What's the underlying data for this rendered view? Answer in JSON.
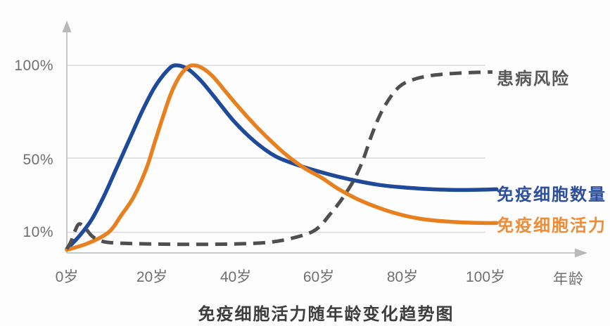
{
  "title": "免疫细胞活力随年龄变化趋势图",
  "axes": {
    "x_unit_label": "年龄",
    "x_ticks": [
      "0岁",
      "20岁",
      "40岁",
      "60岁",
      "80岁",
      "100岁"
    ],
    "y_ticks": [
      "100%",
      "50%",
      "10%"
    ]
  },
  "legend": {
    "risk_label": "患病风险",
    "count_label": "免疫细胞数量",
    "activity_label": "免疫细胞活力"
  },
  "colors": {
    "count_line": "#1e4a99",
    "activity_line": "#e8801f",
    "risk_line": "#4f4f4f",
    "grid_line": "#d9d9d9",
    "axis_line": "#c8c8c8",
    "tick_text": "#6f6f6f"
  },
  "chart_data": {
    "type": "line",
    "title": "免疫细胞活力随年龄变化趋势图",
    "xlabel": "年龄",
    "ylabel": "",
    "x_tick_ages": [
      0,
      20,
      40,
      60,
      80,
      100
    ],
    "y_tick_percent": [
      100,
      50,
      10
    ],
    "xlim": [
      0,
      104
    ],
    "ylim": [
      0,
      110
    ],
    "grid": "horizontal",
    "legend_position": "right-of-line-ends",
    "series": [
      {
        "name": "免疫细胞数量",
        "color": "#1e4a99",
        "style": "solid",
        "x": [
          0,
          3,
          6,
          9,
          12,
          15,
          18,
          21,
          24,
          26,
          29,
          32,
          35,
          40,
          45,
          50,
          55,
          60,
          65,
          70,
          75,
          80,
          85,
          90,
          95,
          100,
          103
        ],
        "y": [
          1,
          8,
          17,
          30,
          45,
          60,
          75,
          88,
          97,
          100,
          98,
          92,
          84,
          70,
          59,
          51,
          46.5,
          43,
          40,
          37.5,
          35.5,
          34.3,
          33.5,
          33,
          32.8,
          33,
          33.2
        ]
      },
      {
        "name": "免疫细胞活力",
        "color": "#e8801f",
        "style": "solid",
        "x": [
          0,
          5,
          10,
          13,
          16,
          19,
          21,
          23,
          25,
          27,
          29,
          30.5,
          32.5,
          35,
          38,
          41,
          45,
          49,
          53,
          57,
          61,
          65,
          70,
          75,
          80,
          85,
          90,
          95,
          100,
          103
        ],
        "y": [
          0.5,
          4,
          10,
          19,
          29,
          44,
          58,
          72,
          85,
          94,
          99,
          100,
          98.5,
          94,
          86,
          78,
          68,
          59,
          51,
          44.5,
          39.5,
          33.5,
          27.5,
          23,
          19.5,
          17.2,
          16,
          15.3,
          15,
          15
        ]
      },
      {
        "name": "患病风险",
        "color": "#4f4f4f",
        "style": "dashed",
        "x": [
          0,
          1,
          2,
          3,
          4.5,
          6,
          8,
          10,
          14,
          18,
          23,
          28,
          33,
          38,
          43,
          48,
          52,
          56,
          59,
          61,
          63,
          65,
          67,
          69,
          71,
          73,
          75,
          77,
          79,
          81,
          84,
          87,
          90,
          94,
          98,
          102
        ],
        "y": [
          1,
          5,
          11,
          14.5,
          12,
          8,
          5.5,
          4.5,
          4,
          3.8,
          3.6,
          3.5,
          3.5,
          3.6,
          3.9,
          4.5,
          5.8,
          8,
          10.5,
          14,
          19.5,
          25,
          31.5,
          39,
          49,
          62,
          73,
          81,
          87,
          90.5,
          93,
          94.4,
          95.2,
          95.8,
          96.2,
          96.4
        ]
      }
    ]
  }
}
